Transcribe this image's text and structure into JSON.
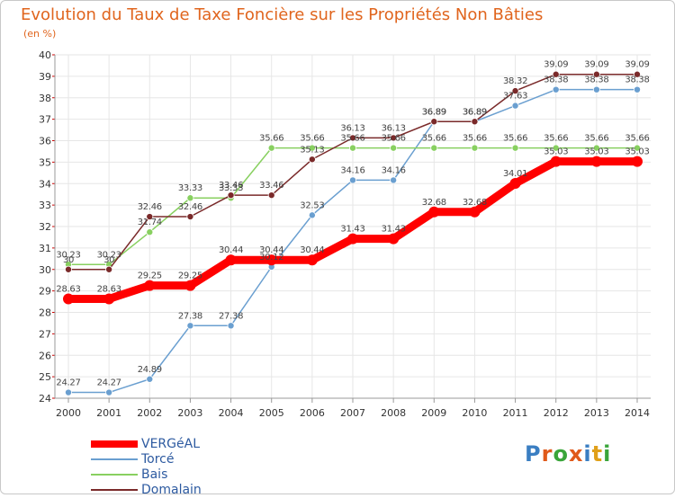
{
  "title": "Evolution du Taux de Taxe Foncière sur les Propriétés Non Bâties",
  "subtitle": "(en %)",
  "logo": {
    "text": "Proxiti",
    "letter_colors": [
      "#3a7ec2",
      "#e05a1a",
      "#3aa53a",
      "#e05a1a",
      "#3a7ec2",
      "#e0a01a",
      "#3aa53a"
    ]
  },
  "chart_data": {
    "type": "line",
    "title": "Evolution du Taux de Taxe Foncière sur les Propriétés Non Bâties",
    "ylabel": "(en %)",
    "xlabel": "",
    "x": [
      "2000",
      "2001",
      "2002",
      "2003",
      "2004",
      "2005",
      "2006",
      "2007",
      "2008",
      "2009",
      "2010",
      "2011",
      "2012",
      "2013",
      "2014"
    ],
    "ylim": [
      24,
      40
    ],
    "yticks": [
      24,
      25,
      26,
      27,
      28,
      29,
      30,
      31,
      32,
      33,
      34,
      35,
      36,
      37,
      38,
      39,
      40
    ],
    "grid": true,
    "legend_position": "bottom-left",
    "series": [
      {
        "name": "VERGéAL",
        "color": "#ff0000",
        "values": [
          28.63,
          28.63,
          29.25,
          29.25,
          30.44,
          30.44,
          30.44,
          31.43,
          31.43,
          32.68,
          32.68,
          34.01,
          35.03,
          35.03,
          35.03
        ],
        "labels": [
          "28.63",
          "28.63",
          "29.25",
          "29.25",
          "30.44",
          "30.44",
          "30.44",
          "31.43",
          "31.43",
          "32.68",
          "32.68",
          "34.01",
          "35.03",
          "35.03",
          "35.03"
        ]
      },
      {
        "name": "Torcé",
        "color": "#6a9fd0",
        "values": [
          24.27,
          24.27,
          24.89,
          27.38,
          27.38,
          30.12,
          32.53,
          34.16,
          34.16,
          36.89,
          36.89,
          37.63,
          38.38,
          38.38,
          38.38
        ],
        "labels": [
          "24.27",
          "24.27",
          "24.89",
          "27.38",
          "27.38",
          "30.12",
          "32.53",
          "34.16",
          "34.16",
          "36.89",
          "36.89",
          "37.63",
          "38.38",
          "38.38",
          "38.38"
        ]
      },
      {
        "name": "Bais",
        "color": "#88d060",
        "values": [
          30.23,
          30.23,
          31.74,
          33.33,
          33.33,
          35.66,
          35.66,
          35.66,
          35.66,
          35.66,
          35.66,
          35.66,
          35.66,
          35.66,
          35.66
        ],
        "labels": [
          "30.23",
          "30.23",
          "31.74",
          "33.33",
          "33.33",
          "35.66",
          "35.66",
          "35.66",
          "35.66",
          "35.66",
          "35.66",
          "35.66",
          "35.66",
          "35.66",
          "35.66"
        ]
      },
      {
        "name": "Domalain",
        "color": "#7a2a2a",
        "values": [
          30,
          30,
          32.46,
          32.46,
          33.46,
          33.46,
          35.13,
          36.13,
          36.13,
          36.89,
          36.89,
          38.32,
          39.09,
          39.09,
          39.09
        ],
        "labels": [
          "30",
          "30",
          "32.46",
          "32.46",
          "33.46",
          "33.46",
          "35.13",
          "36.13",
          "36.13",
          "36.89",
          "36.89",
          "38.32",
          "39.09",
          "39.09",
          "39.09"
        ]
      }
    ]
  }
}
